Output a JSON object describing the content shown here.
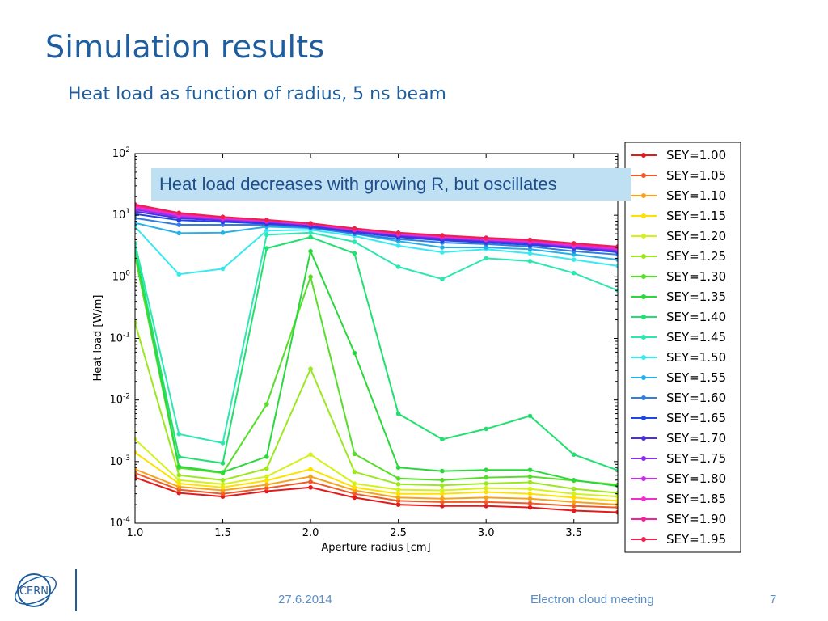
{
  "slide": {
    "title": "Simulation results",
    "subtitle": "Heat load as function of radius, 5 ns beam",
    "callout": "Heat load decreases with growing R, but oscillates",
    "logo_text": "CERN"
  },
  "footer": {
    "date": "27.6.2014",
    "meeting": "Electron cloud meeting",
    "page": "7"
  },
  "chart_data": {
    "type": "line",
    "xlabel": "Aperture radius [cm]",
    "ylabel": "Heat load [W/m]",
    "yscale": "log",
    "xlim": [
      1.0,
      3.75
    ],
    "ylim": [
      0.0001,
      100
    ],
    "grid": false,
    "legend_position": "right-outside",
    "x_ticks": [
      "1.0",
      "1.5",
      "2.0",
      "2.5",
      "3.0",
      "3.5"
    ],
    "y_ticks": [
      {
        "base": "10",
        "exp": "2",
        "value": 100
      },
      {
        "base": "10",
        "exp": "1",
        "value": 10
      },
      {
        "base": "10",
        "exp": "0",
        "value": 1
      },
      {
        "base": "10",
        "exp": "-1",
        "value": 0.1
      },
      {
        "base": "10",
        "exp": "-2",
        "value": 0.01
      },
      {
        "base": "10",
        "exp": "-3",
        "value": 0.001
      },
      {
        "base": "10",
        "exp": "-4",
        "value": 0.0001
      }
    ],
    "x": [
      1.0,
      1.25,
      1.5,
      1.75,
      2.0,
      2.25,
      2.5,
      2.75,
      3.0,
      3.25,
      3.5,
      3.75
    ],
    "series": [
      {
        "name": "SEY=1.00",
        "color": "#e31a1c",
        "values": [
          0.00055,
          0.00031,
          0.00027,
          0.00033,
          0.00038,
          0.00026,
          0.0002,
          0.00019,
          0.00019,
          0.00018,
          0.00016,
          0.00015
        ]
      },
      {
        "name": "SEY=1.05",
        "color": "#f05a28",
        "values": [
          0.00065,
          0.00035,
          0.0003,
          0.00037,
          0.00047,
          0.0003,
          0.00023,
          0.00022,
          0.00022,
          0.00021,
          0.00019,
          0.00018
        ]
      },
      {
        "name": "SEY=1.10",
        "color": "#f7a21b",
        "values": [
          0.00075,
          0.00039,
          0.00034,
          0.00042,
          0.00057,
          0.00034,
          0.00026,
          0.00025,
          0.00026,
          0.00025,
          0.00022,
          0.0002
        ]
      },
      {
        "name": "SEY=1.15",
        "color": "#ffe100",
        "values": [
          0.0014,
          0.00044,
          0.00038,
          0.00049,
          0.00075,
          0.00038,
          0.0003,
          0.0003,
          0.00032,
          0.0003,
          0.00026,
          0.00023
        ]
      },
      {
        "name": "SEY=1.20",
        "color": "#d4f21a",
        "values": [
          0.0023,
          0.0005,
          0.00043,
          0.00057,
          0.0013,
          0.00044,
          0.00035,
          0.00034,
          0.00037,
          0.00036,
          0.0003,
          0.00027
        ]
      },
      {
        "name": "SEY=1.25",
        "color": "#9be81f",
        "values": [
          0.18,
          0.0006,
          0.0005,
          0.00077,
          0.032,
          0.00068,
          0.00043,
          0.00041,
          0.00044,
          0.00046,
          0.00036,
          0.00031
        ]
      },
      {
        "name": "SEY=1.30",
        "color": "#56de2a",
        "values": [
          2.2,
          0.00079,
          0.00065,
          0.0085,
          1.0,
          0.00133,
          0.00053,
          0.0005,
          0.00055,
          0.00057,
          0.00049,
          0.00042
        ]
      },
      {
        "name": "SEY=1.35",
        "color": "#2bd83c",
        "values": [
          2.8,
          0.00083,
          0.00067,
          0.0012,
          2.6,
          0.058,
          0.0008,
          0.0007,
          0.00073,
          0.00073,
          0.0005,
          0.0004
        ]
      },
      {
        "name": "SEY=1.40",
        "color": "#20e070",
        "values": [
          3.0,
          0.0012,
          0.00094,
          2.9,
          4.4,
          2.4,
          0.006,
          0.0023,
          0.0034,
          0.0055,
          0.0013,
          0.00072
        ]
      },
      {
        "name": "SEY=1.45",
        "color": "#2ae8b0",
        "values": [
          3.5,
          0.0028,
          0.002,
          4.8,
          5.2,
          3.7,
          1.45,
          0.92,
          2.0,
          1.8,
          1.15,
          0.6
        ]
      },
      {
        "name": "SEY=1.50",
        "color": "#38eaf0",
        "values": [
          6.5,
          1.1,
          1.35,
          5.6,
          5.8,
          4.6,
          3.2,
          2.5,
          2.8,
          2.4,
          1.9,
          1.5
        ]
      },
      {
        "name": "SEY=1.55",
        "color": "#27b0e8",
        "values": [
          7.5,
          5.1,
          5.2,
          6.5,
          6.2,
          5.0,
          3.8,
          3.0,
          3.0,
          2.8,
          2.3,
          1.9
        ]
      },
      {
        "name": "SEY=1.60",
        "color": "#2f7ee0",
        "values": [
          9.0,
          7.0,
          7.0,
          7.0,
          6.3,
          5.0,
          4.1,
          3.6,
          3.4,
          3.1,
          2.6,
          2.3
        ]
      },
      {
        "name": "SEY=1.65",
        "color": "#2244e0",
        "values": [
          10.5,
          8.3,
          7.8,
          7.3,
          6.5,
          5.3,
          4.4,
          3.9,
          3.6,
          3.3,
          2.9,
          2.5
        ]
      },
      {
        "name": "SEY=1.70",
        "color": "#4a2ee0",
        "values": [
          11.5,
          9.0,
          8.2,
          7.6,
          6.8,
          5.5,
          4.6,
          4.1,
          3.8,
          3.5,
          3.0,
          2.6
        ]
      },
      {
        "name": "SEY=1.75",
        "color": "#8a2ee8",
        "values": [
          12.3,
          9.5,
          8.5,
          7.8,
          7.0,
          5.7,
          4.8,
          4.3,
          3.9,
          3.6,
          3.1,
          2.7
        ]
      },
      {
        "name": "SEY=1.80",
        "color": "#c52ee8",
        "values": [
          13.0,
          9.9,
          8.8,
          8.0,
          7.1,
          5.8,
          4.9,
          4.4,
          4.0,
          3.7,
          3.2,
          2.8
        ]
      },
      {
        "name": "SEY=1.85",
        "color": "#f02ed0",
        "values": [
          13.7,
          10.3,
          9.0,
          8.2,
          7.2,
          5.9,
          5.0,
          4.5,
          4.1,
          3.8,
          3.3,
          2.9
        ]
      },
      {
        "name": "SEY=1.90",
        "color": "#f5209a",
        "values": [
          14.3,
          10.6,
          9.2,
          8.3,
          7.3,
          6.0,
          5.1,
          4.6,
          4.2,
          3.9,
          3.4,
          3.0
        ]
      },
      {
        "name": "SEY=1.95",
        "color": "#ee2050",
        "values": [
          15.0,
          10.9,
          9.4,
          8.4,
          7.4,
          6.1,
          5.2,
          4.7,
          4.3,
          4.0,
          3.5,
          3.1
        ]
      }
    ]
  }
}
